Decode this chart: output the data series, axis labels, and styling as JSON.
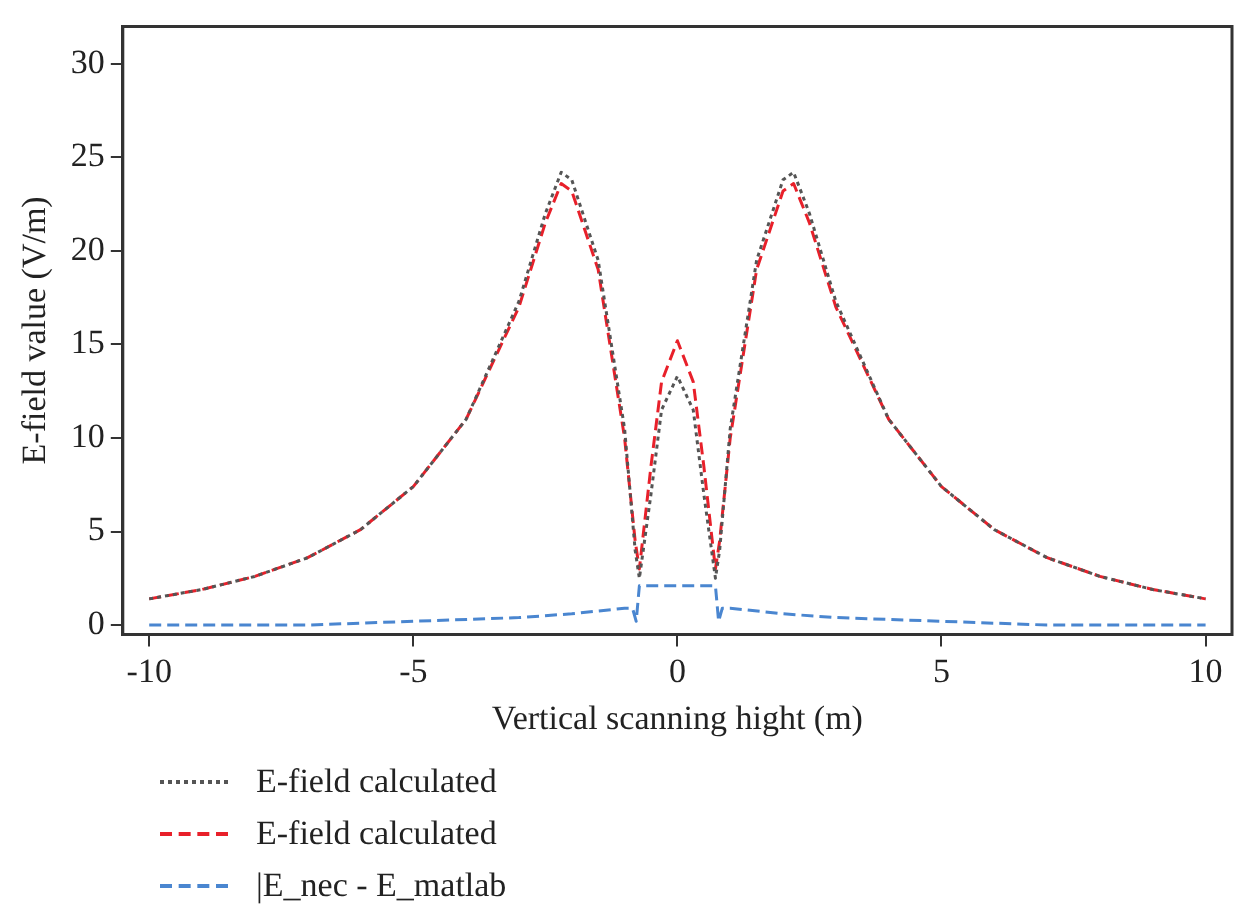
{
  "chart_data": {
    "type": "line",
    "xlabel": "Vertical scanning hight (m)",
    "ylabel": "E-field value (V/m)",
    "xlim": [
      -10.5,
      10.5
    ],
    "xticks": [
      -10,
      -5,
      0,
      5,
      10
    ],
    "ylim": [
      -0.5,
      32
    ],
    "yticks": [
      0,
      5,
      10,
      15,
      20,
      25,
      30
    ],
    "grid": false,
    "legend": "bottom",
    "marker": "none",
    "series": [
      {
        "name": "E-field calculated",
        "color": "#555555",
        "line_style": "dotted",
        "x": [
          -10,
          -9,
          -8,
          -7,
          -6,
          -5,
          -4,
          -3,
          -2.5,
          -2.2,
          -2,
          -1.5,
          -1,
          -0.8,
          -0.72,
          -0.5,
          -0.3,
          0,
          0.3,
          0.5,
          0.72,
          0.8,
          1,
          1.5,
          2,
          2.2,
          2.5,
          3,
          4,
          5,
          6,
          7,
          8,
          9,
          10
        ],
        "values": [
          1.4,
          1.9,
          2.6,
          3.6,
          5.1,
          7.4,
          11,
          17.3,
          22,
          24.2,
          23.8,
          19.5,
          10.5,
          4,
          2.5,
          7,
          11.5,
          13.3,
          11.5,
          7,
          2.5,
          4,
          10.5,
          19.5,
          23.8,
          24.2,
          22,
          17.3,
          11,
          7.4,
          5.1,
          3.6,
          2.6,
          1.9,
          1.4
        ]
      },
      {
        "name": "E-field calculated",
        "color": "#e8202a",
        "line_style": "dashed",
        "x": [
          -10,
          -9,
          -8,
          -7,
          -6,
          -5,
          -4,
          -3,
          -2.5,
          -2.2,
          -2,
          -1.5,
          -1,
          -0.8,
          -0.72,
          -0.5,
          -0.3,
          0,
          0.3,
          0.5,
          0.72,
          0.8,
          1,
          1.5,
          2,
          2.2,
          2.5,
          3,
          4,
          5,
          6,
          7,
          8,
          9,
          10
        ],
        "values": [
          1.4,
          1.9,
          2.6,
          3.6,
          5.1,
          7.4,
          11,
          17,
          21.5,
          23.6,
          23.2,
          19,
          10,
          4.5,
          3,
          8.5,
          13,
          15.2,
          13,
          8.5,
          3,
          4.5,
          10,
          19,
          23.2,
          23.6,
          21.5,
          17,
          11,
          7.4,
          5.1,
          3.6,
          2.6,
          1.9,
          1.4
        ]
      },
      {
        "name": "|E_nec - E_matlab",
        "color": "#4a86d0",
        "line_style": "dashed",
        "x": [
          -10,
          -7,
          -5,
          -3,
          -2,
          -1,
          -0.85,
          -0.78,
          -0.72,
          0,
          0.72,
          0.78,
          0.85,
          1,
          2,
          3,
          5,
          7,
          10
        ],
        "values": [
          0,
          0,
          0.2,
          0.4,
          0.6,
          0.9,
          0.9,
          0.2,
          2.1,
          2.1,
          2.1,
          0.2,
          0.9,
          0.9,
          0.6,
          0.4,
          0.2,
          0,
          0
        ]
      }
    ]
  }
}
